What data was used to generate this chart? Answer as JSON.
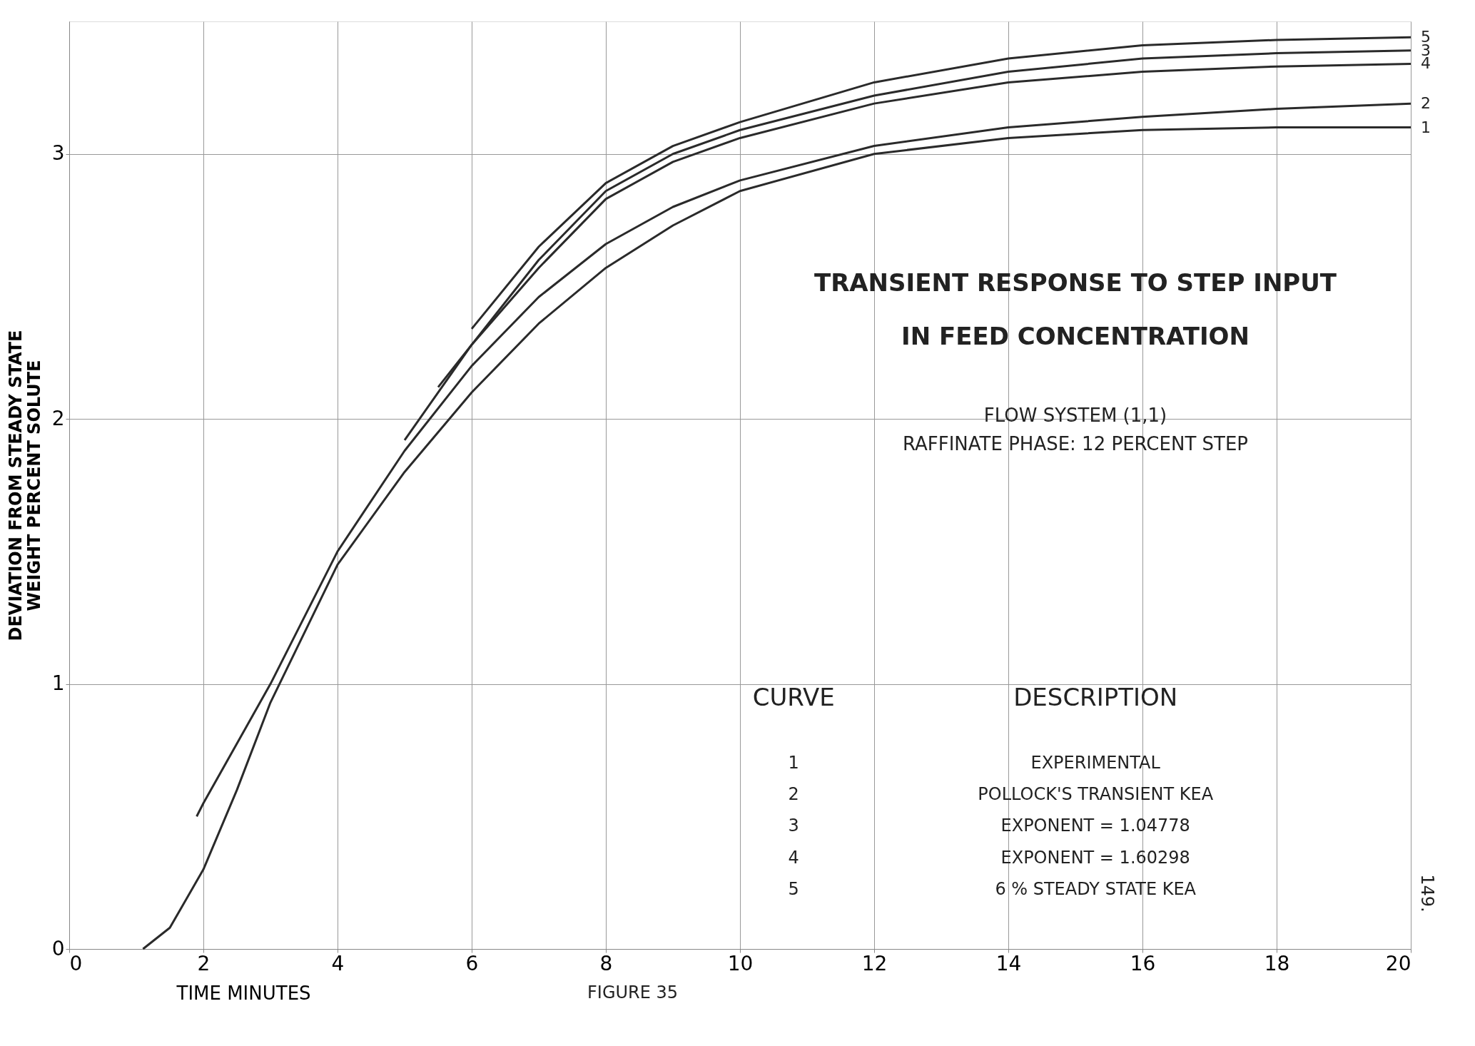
{
  "chart_data": {
    "type": "line",
    "title": "TRANSIENT RESPONSE TO STEP INPUT\nIN FEED CONCENTRATION",
    "subtitle": "FLOW SYSTEM (1,1)\nRAFFINATE PHASE: 12 PERCENT STEP",
    "xlabel": "TIME   MINUTES",
    "ylabel": "DEVIATION   FROM   STEADY   STATE\nWEIGHT   PERCENT   SOLUTE",
    "xlim": [
      0,
      20
    ],
    "xticks": [
      0,
      2,
      4,
      6,
      8,
      10,
      12,
      14,
      16,
      18,
      20
    ],
    "ylim": [
      0,
      3.5
    ],
    "yticks": [
      0,
      1,
      2,
      3
    ],
    "grid": true,
    "marker": "none",
    "line_style": "solid",
    "series": [
      {
        "name": "1",
        "color": "#2a2a2a",
        "x": [
          1.1,
          1.5,
          2,
          2.5,
          3,
          4,
          5,
          6,
          7,
          8,
          9,
          10,
          12,
          14,
          16,
          18,
          20
        ],
        "values": [
          0,
          0.08,
          0.3,
          0.6,
          0.93,
          1.45,
          1.8,
          2.1,
          2.36,
          2.57,
          2.73,
          2.86,
          3.0,
          3.06,
          3.09,
          3.1,
          3.1
        ]
      },
      {
        "name": "2",
        "color": "#2a2a2a",
        "x": [
          1.9,
          2,
          3,
          4,
          5,
          6,
          7,
          8,
          9,
          10,
          12,
          14,
          16,
          18,
          20
        ],
        "values": [
          0.5,
          0.55,
          1.0,
          1.5,
          1.88,
          2.2,
          2.46,
          2.66,
          2.8,
          2.9,
          3.03,
          3.1,
          3.14,
          3.17,
          3.19
        ]
      },
      {
        "name": "3",
        "color": "#2a2a2a",
        "x": [
          5,
          6,
          7,
          8,
          9,
          10,
          12,
          14,
          16,
          18,
          20
        ],
        "values": [
          1.92,
          2.28,
          2.6,
          2.86,
          3.0,
          3.09,
          3.22,
          3.31,
          3.36,
          3.38,
          3.39
        ]
      },
      {
        "name": "4",
        "color": "#2a2a2a",
        "x": [
          5.5,
          6,
          7,
          8,
          9,
          10,
          12,
          14,
          16,
          18,
          20
        ],
        "values": [
          2.12,
          2.28,
          2.57,
          2.83,
          2.97,
          3.06,
          3.19,
          3.27,
          3.31,
          3.33,
          3.34
        ]
      },
      {
        "name": "5",
        "color": "#2a2a2a",
        "x": [
          6,
          7,
          8,
          9,
          10,
          12,
          14,
          16,
          18,
          20
        ],
        "values": [
          2.34,
          2.65,
          2.89,
          3.03,
          3.12,
          3.27,
          3.36,
          3.41,
          3.43,
          3.44
        ]
      }
    ],
    "annotations": [
      "CURVE",
      "DESCRIPTION",
      "EXPERIMENTAL",
      "POLLOCK'S TRANSIENT KEA",
      "EXPONENT = 1.04778",
      "EXPONENT = 1.60298",
      "6 % STEADY STATE KEA",
      "FIGURE 35",
      "149."
    ]
  }
}
